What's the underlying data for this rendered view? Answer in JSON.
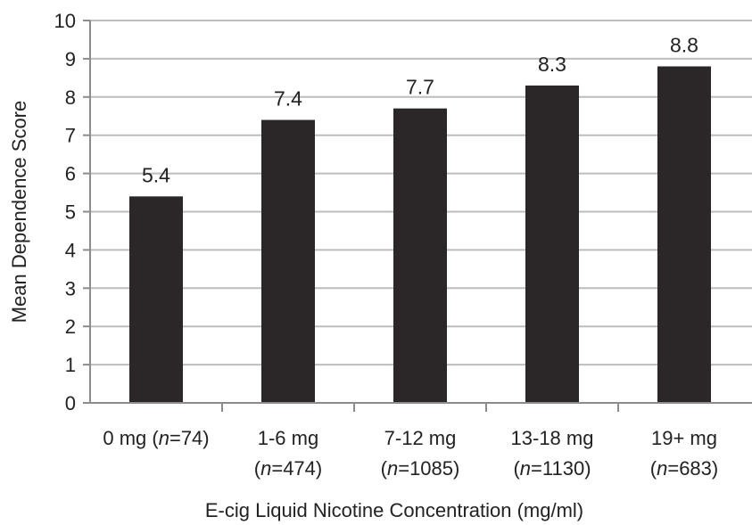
{
  "chart_data": {
    "type": "bar",
    "title": "",
    "xlabel": "E-cig Liquid Nicotine Concentration (mg/ml)",
    "ylabel": "Mean Dependence Score",
    "ylim": [
      0,
      10
    ],
    "yticks": [
      0,
      1,
      2,
      3,
      4,
      5,
      6,
      7,
      8,
      9,
      10
    ],
    "grid": true,
    "categories": [
      {
        "line1": "0 mg",
        "n": "74",
        "inline": true
      },
      {
        "line1": "1-6 mg",
        "n": "474",
        "inline": false
      },
      {
        "line1": "7-12 mg",
        "n": "1085",
        "inline": false
      },
      {
        "line1": "13-18 mg",
        "n": "1130",
        "inline": false
      },
      {
        "line1": "19+ mg",
        "n": "683",
        "inline": false
      }
    ],
    "values": [
      5.4,
      7.4,
      7.7,
      8.3,
      8.8
    ],
    "data_labels": [
      "5.4",
      "7.4",
      "7.7",
      "8.3",
      "8.8"
    ],
    "colors": {
      "bar": "#2b2728",
      "grid": "#bdbdbd",
      "axis": "#8c8c8c",
      "text": "#222222"
    }
  }
}
